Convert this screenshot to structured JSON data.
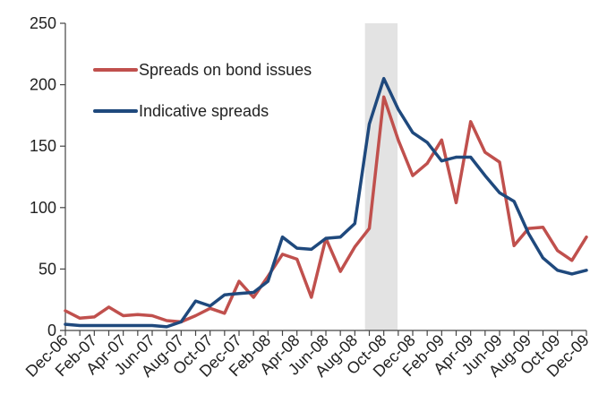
{
  "chart_data": {
    "type": "line",
    "title": "",
    "xlabel": "",
    "ylabel": "",
    "ylim": [
      0,
      250
    ],
    "yticks": [
      0,
      50,
      100,
      150,
      200,
      250
    ],
    "grid": false,
    "legend_position": "top-left",
    "x": [
      "Dec-06",
      "Jan-07",
      "Feb-07",
      "Mar-07",
      "Apr-07",
      "May-07",
      "Jun-07",
      "Jul-07",
      "Aug-07",
      "Sep-07",
      "Oct-07",
      "Nov-07",
      "Dec-07",
      "Jan-08",
      "Feb-08",
      "Mar-08",
      "Apr-08",
      "May-08",
      "Jun-08",
      "Jul-08",
      "Aug-08",
      "Sep-08",
      "Oct-08",
      "Nov-08",
      "Dec-08",
      "Jan-09",
      "Feb-09",
      "Mar-09",
      "Apr-09",
      "May-09",
      "Jun-09",
      "Jul-09",
      "Aug-09",
      "Sep-09",
      "Oct-09",
      "Nov-09",
      "Dec-09"
    ],
    "x_tick_labels": [
      "Dec-06",
      "Feb-07",
      "Apr-07",
      "Jun-07",
      "Aug-07",
      "Oct-07",
      "Dec-07",
      "Feb-08",
      "Apr-08",
      "Jun-08",
      "Aug-08",
      "Oct-08",
      "Dec-08",
      "Feb-09",
      "Apr-09",
      "Jun-09",
      "Aug-09",
      "Oct-09",
      "Dec-09"
    ],
    "shaded_region": {
      "from": "Sep-08",
      "to": "Nov-08",
      "color": "#e3e3e3"
    },
    "series": [
      {
        "name": "Spreads on bond issues",
        "color": "#c0504d",
        "values": [
          16,
          10,
          11,
          19,
          12,
          13,
          12,
          8,
          7,
          12,
          18,
          14,
          40,
          27,
          44,
          62,
          58,
          27,
          75,
          48,
          68,
          83,
          190,
          155,
          126,
          136,
          155,
          104,
          170,
          145,
          137,
          69,
          83,
          84,
          65,
          57,
          76
        ]
      },
      {
        "name": "Indicative spreads",
        "color": "#1f497d",
        "values": [
          5,
          4,
          4,
          4,
          4,
          4,
          4,
          3,
          7,
          24,
          20,
          29,
          30,
          31,
          40,
          76,
          67,
          66,
          75,
          76,
          87,
          168,
          205,
          180,
          161,
          153,
          138,
          141,
          141,
          126,
          112,
          105,
          79,
          59,
          49,
          46,
          49
        ]
      }
    ]
  }
}
